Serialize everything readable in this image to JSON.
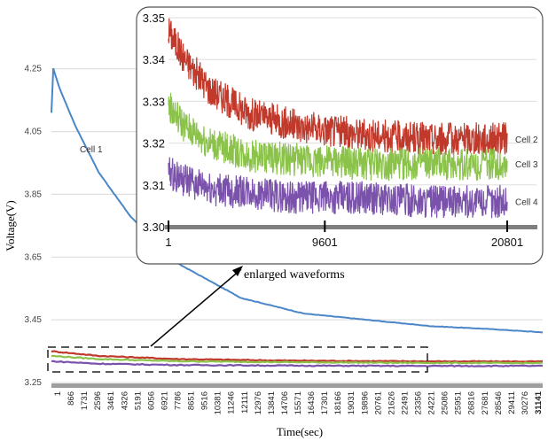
{
  "chart_data": [
    {
      "type": "line",
      "title": "",
      "xlabel": "Time(sec)",
      "ylabel": "Voltage(V)",
      "ylim": [
        3.25,
        4.3
      ],
      "xlim": [
        1,
        31141
      ],
      "yticks": [
        "3.25",
        "3.45",
        "3.65",
        "3.85",
        "4.05",
        "4.25"
      ],
      "xticks": [
        "1",
        "866",
        "1731",
        "2596",
        "3461",
        "4326",
        "5191",
        "6056",
        "6921",
        "7786",
        "8651",
        "9516",
        "10381",
        "11246",
        "12111",
        "12976",
        "13841",
        "14706",
        "15571",
        "16436",
        "17301",
        "18166",
        "19031",
        "19896",
        "20761",
        "21626",
        "22491",
        "23356",
        "24221",
        "25086",
        "25951",
        "26816",
        "27681",
        "28546",
        "29411",
        "30276",
        "31141"
      ],
      "grid": true,
      "series": [
        {
          "name": "Cell 1",
          "color": "#4a86c8",
          "x": [
            1,
            500,
            1500,
            3000,
            5000,
            8000,
            12000,
            16000,
            20000,
            24000,
            28000,
            31141
          ],
          "values": [
            4.27,
            4.19,
            4.07,
            3.92,
            3.78,
            3.63,
            3.52,
            3.47,
            3.45,
            3.43,
            3.42,
            3.41
          ]
        },
        {
          "name": "",
          "color": "#c0392b",
          "x": [
            1,
            3000,
            8000,
            15000,
            22000,
            31141
          ],
          "values": [
            3.35,
            3.335,
            3.325,
            3.32,
            3.318,
            3.317
          ]
        },
        {
          "name": "",
          "color": "#8bc34a",
          "x": [
            1,
            3000,
            8000,
            15000,
            22000,
            31141
          ],
          "values": [
            3.335,
            3.325,
            3.318,
            3.315,
            3.313,
            3.312
          ]
        },
        {
          "name": "",
          "color": "#7b52ab",
          "x": [
            1,
            3000,
            8000,
            15000,
            22000,
            31141
          ],
          "values": [
            3.318,
            3.31,
            3.306,
            3.304,
            3.303,
            3.303
          ]
        }
      ],
      "annotations": [
        {
          "text": "Cell 1"
        },
        {
          "text": "enlarged waveforms"
        }
      ]
    },
    {
      "type": "line",
      "title": "",
      "ylim": [
        3.3,
        3.35
      ],
      "xlim": [
        1,
        20801
      ],
      "yticks": [
        "3.30",
        "3.31",
        "3.32",
        "3.33",
        "3.34",
        "3.35"
      ],
      "xticks": [
        "1",
        "9601",
        "20801"
      ],
      "grid": true,
      "series": [
        {
          "name": "Cell 2",
          "color": "#c0392b",
          "x": [
            1,
            1000,
            2500,
            5000,
            8000,
            12000,
            16000,
            20801
          ],
          "values": [
            3.347,
            3.34,
            3.333,
            3.327,
            3.324,
            3.322,
            3.321,
            3.321
          ]
        },
        {
          "name": "Cell 3",
          "color": "#8bc34a",
          "x": [
            1,
            1000,
            2500,
            5000,
            8000,
            12000,
            16000,
            20801
          ],
          "values": [
            3.329,
            3.324,
            3.32,
            3.317,
            3.316,
            3.315,
            3.315,
            3.315
          ]
        },
        {
          "name": "Cell 4",
          "color": "#7b52ab",
          "x": [
            1,
            1000,
            2500,
            5000,
            8000,
            12000,
            16000,
            20801
          ],
          "values": [
            3.313,
            3.311,
            3.309,
            3.308,
            3.307,
            3.307,
            3.306,
            3.306
          ]
        }
      ]
    }
  ]
}
